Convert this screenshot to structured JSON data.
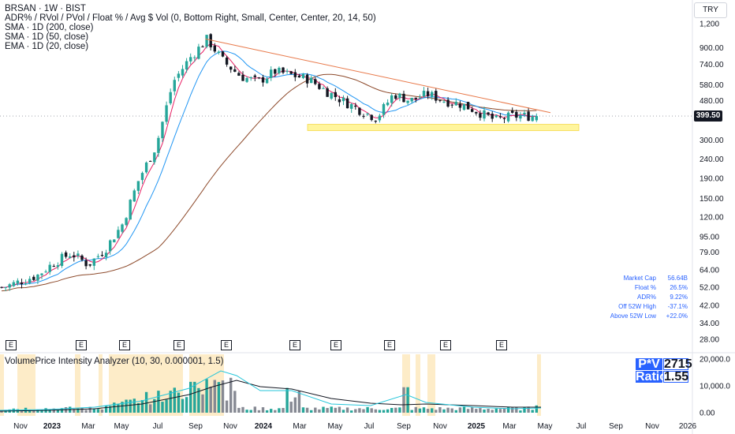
{
  "header": {
    "symbol_line": "BRSAN · 1W · BIST",
    "indicators": [
      "ADR% / RVol / PVol / Float % / Avg $ Vol (0, Bottom Right, Small, Center, Center, 20, 14, 50)",
      "SMA · 1D (200, close)",
      "SMA · 1D (50, close)",
      "EMA · 1D (20, close)"
    ]
  },
  "currency": "TRY",
  "current_price": "399.50",
  "stats": [
    {
      "label": "Market Cap",
      "value": "56.64B"
    },
    {
      "label": "Float %",
      "value": "26.5%"
    },
    {
      "label": "ADR%",
      "value": "9.22%"
    },
    {
      "label": "Off 52W High",
      "value": "-37.1%"
    },
    {
      "label": "Above 52W Low",
      "value": "+22.0%"
    }
  ],
  "pv_panel": {
    "pv_label": "P*V",
    "pv_value": "2715",
    "ratio_label": "Ratio",
    "ratio_value": "1.55"
  },
  "volume_indicator_title": "VolumePrice Intensity Analyzer (10, 30, 0.000001, 1.5)",
  "earnings_marker": "E",
  "colors": {
    "up": "#26a69a",
    "down": "#131722",
    "sma200": "#8d4a2b",
    "sma50": "#2196f3",
    "ema20": "#e91e63",
    "trendline": "#e8794a",
    "support_zone": "#fff59d",
    "volume_bar": "#868993",
    "highlight": "#fdecc8",
    "accent": "#2962ff"
  },
  "chart_data": {
    "type": "candlestick",
    "y_scale": "log",
    "y_ticks": [
      "1,200",
      "900.00",
      "740.00",
      "580.00",
      "480.00",
      "300.00",
      "240.00",
      "190.00",
      "150.00",
      "120.00",
      "95.00",
      "79.00",
      "64.00",
      "52.00",
      "42.00",
      "34.00",
      "28.00"
    ],
    "volume_ticks": [
      "20,000.0",
      "10,000.0",
      "0.00"
    ],
    "x_ticks": [
      "Nov",
      "2023",
      "Mar",
      "May",
      "Jul",
      "Sep",
      "Nov",
      "2024",
      "Mar",
      "May",
      "Jul",
      "Sep",
      "Nov",
      "2025",
      "Mar",
      "May",
      "Jul",
      "Sep",
      "Nov",
      "2026"
    ],
    "close_path": [
      [
        "2022-10",
        52
      ],
      [
        "2022-12",
        60
      ],
      [
        "2023-01",
        70
      ],
      [
        "2023-02",
        78
      ],
      [
        "2023-03",
        68
      ],
      [
        "2023-04",
        82
      ],
      [
        "2023-05",
        110
      ],
      [
        "2023-06",
        190
      ],
      [
        "2023-07",
        280
      ],
      [
        "2023-08",
        600
      ],
      [
        "2023-09",
        800
      ],
      [
        "2023-10",
        1000
      ],
      [
        "2023-11",
        760
      ],
      [
        "2023-12",
        640
      ],
      [
        "2024-01",
        600
      ],
      [
        "2024-02",
        680
      ],
      [
        "2024-03",
        650
      ],
      [
        "2024-04",
        620
      ],
      [
        "2024-05",
        540
      ],
      [
        "2024-06",
        480
      ],
      [
        "2024-07",
        430
      ],
      [
        "2024-08",
        390
      ],
      [
        "2024-09",
        520
      ],
      [
        "2024-10",
        480
      ],
      [
        "2024-11",
        520
      ],
      [
        "2024-12",
        480
      ],
      [
        "2025-01",
        460
      ],
      [
        "2025-02",
        420
      ],
      [
        "2025-03",
        380
      ],
      [
        "2025-04",
        399.5
      ]
    ],
    "support_zone": [
      336,
      362
    ],
    "trendline_start": [
      "2023-10",
      1000
    ],
    "trendline_end": [
      "2025-04",
      432
    ]
  }
}
